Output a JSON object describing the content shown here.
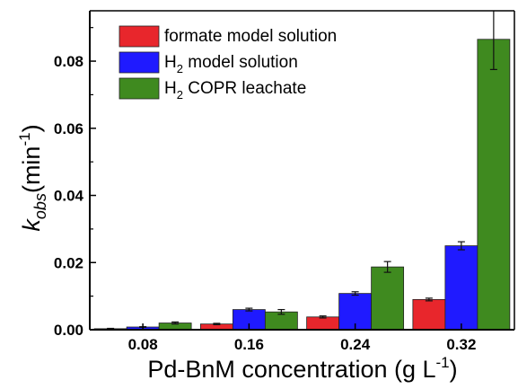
{
  "chart_data": {
    "type": "bar",
    "categories": [
      "0.08",
      "0.16",
      "0.24",
      "0.32"
    ],
    "series": [
      {
        "name": "formate model solution",
        "color": "#e8262c",
        "values": [
          0.0003,
          0.0017,
          0.0038,
          0.009
        ],
        "errors": [
          0.0001,
          0.0002,
          0.0003,
          0.0004
        ]
      },
      {
        "name": "H2 model solution",
        "color": "#1f1aff",
        "values": [
          0.0008,
          0.006,
          0.0108,
          0.025
        ],
        "errors": [
          0.0001,
          0.0004,
          0.0005,
          0.0012
        ]
      },
      {
        "name": "H2 COPR leachate",
        "color": "#3f8a1f",
        "values": [
          0.002,
          0.0053,
          0.0187,
          0.0865
        ],
        "errors": [
          0.0003,
          0.0007,
          0.0016,
          0.009
        ]
      }
    ],
    "legend": {
      "placement": "top-left",
      "entries": [
        {
          "main": "formate model solution",
          "sub": "",
          "rest": ""
        },
        {
          "main": "H",
          "sub": "2",
          "rest": " model solution"
        },
        {
          "main": "H",
          "sub": "2",
          "rest": " COPR leachate"
        }
      ]
    },
    "yticks": [
      "0.00",
      "0.02",
      "0.04",
      "0.06",
      "0.08"
    ],
    "ytick_values": [
      0,
      0.02,
      0.04,
      0.06,
      0.08
    ],
    "ylim": [
      0,
      0.095
    ],
    "xlabel": {
      "main": "Pd-BnM concentration (g L",
      "sup": "-1",
      "close": ")"
    },
    "ylabel": {
      "k": "k",
      "sub": "obs",
      "unit": "(min",
      "sup": "-1",
      "close": ")"
    },
    "grid": false
  }
}
